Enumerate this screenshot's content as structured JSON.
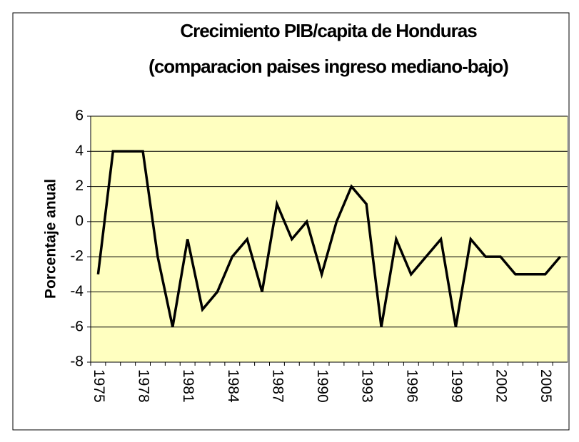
{
  "chart_data": {
    "type": "line",
    "title": [
      "Crecimiento PIB/capita de Honduras",
      "(comparacion paises ingreso mediano-bajo)"
    ],
    "y_label": "Porcentaje anual",
    "categories": [
      "1975",
      null,
      null,
      "1978",
      null,
      null,
      "1981",
      null,
      null,
      "1984",
      null,
      null,
      "1987",
      null,
      null,
      "1990",
      null,
      null,
      "1993",
      null,
      null,
      "1996",
      null,
      null,
      "1999",
      null,
      null,
      "2002",
      null,
      null,
      "2005",
      null
    ],
    "values": [
      -3,
      4,
      4,
      4,
      -2,
      -6,
      -1,
      -5,
      -4,
      -2,
      -1,
      -4,
      1,
      -1,
      0,
      -3,
      0,
      2,
      1,
      -6,
      -1,
      -3,
      -2,
      -1,
      -6,
      -1,
      -2,
      -2,
      -3,
      -3,
      -3,
      -2
    ],
    "color": "#000000",
    "ylim": [
      -8,
      6
    ],
    "yticks": [
      -8,
      -6,
      -4,
      -2,
      0,
      2,
      4,
      6
    ],
    "grid": true
  }
}
